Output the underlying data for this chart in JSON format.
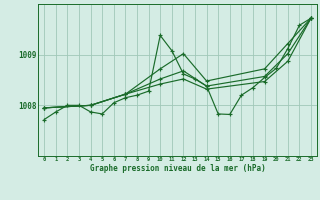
{
  "background_color": "#d4ece4",
  "grid_color": "#a0c8b8",
  "line_color": "#1a6b2a",
  "title": "Graphe pression niveau de la mer (hPa)",
  "ylabel_ticks": [
    1008,
    1009
  ],
  "xlim": [
    -0.5,
    23.5
  ],
  "ylim": [
    1007.55,
    1009.85
  ],
  "figsize": [
    3.2,
    2.0
  ],
  "dpi": 100,
  "series": [
    {
      "x": [
        0,
        1,
        2,
        3,
        4,
        5,
        6,
        7,
        8,
        9,
        10,
        11,
        12,
        13,
        14,
        15,
        16,
        17,
        18,
        19,
        20,
        21,
        22,
        23
      ],
      "y": [
        1007.72,
        1007.87,
        1008.0,
        1008.0,
        1007.87,
        1007.83,
        1008.05,
        1008.15,
        1008.2,
        1008.28,
        1009.38,
        1009.08,
        1008.62,
        1008.52,
        1008.38,
        1007.83,
        1007.82,
        1008.2,
        1008.35,
        1008.55,
        1008.73,
        1009.12,
        1009.58,
        1009.72
      ]
    },
    {
      "x": [
        0,
        4,
        7,
        10,
        12,
        14,
        19,
        21,
        23
      ],
      "y": [
        1007.95,
        1008.0,
        1008.22,
        1008.72,
        1009.02,
        1008.48,
        1008.72,
        1009.22,
        1009.72
      ]
    },
    {
      "x": [
        0,
        4,
        7,
        10,
        12,
        14,
        19,
        21,
        23
      ],
      "y": [
        1007.95,
        1008.0,
        1008.22,
        1008.52,
        1008.68,
        1008.38,
        1008.57,
        1009.02,
        1009.72
      ]
    },
    {
      "x": [
        0,
        4,
        7,
        10,
        12,
        14,
        19,
        21,
        23
      ],
      "y": [
        1007.95,
        1008.0,
        1008.22,
        1008.42,
        1008.52,
        1008.32,
        1008.47,
        1008.87,
        1009.72
      ]
    }
  ]
}
